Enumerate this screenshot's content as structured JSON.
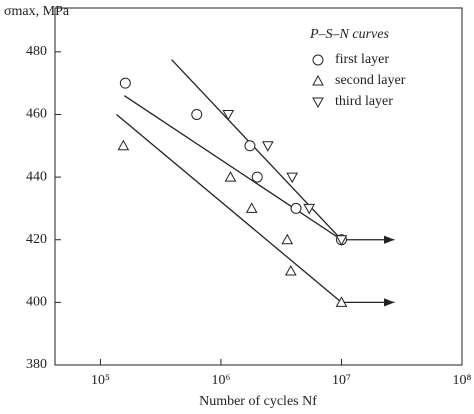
{
  "chart_data": {
    "type": "scatter",
    "y_label": "σmax, MPa",
    "x_label": "Number of cycles Nf",
    "legend_title": "P–S–N curves",
    "log_x": true,
    "xlim": [
      42000,
      100000000
    ],
    "ylim": [
      380,
      494
    ],
    "xticks": [
      {
        "value": 100000,
        "label": "10⁵"
      },
      {
        "value": 1000000,
        "label": "10⁶"
      },
      {
        "value": 10000000,
        "label": "10⁷"
      },
      {
        "value": 100000000,
        "label": "10⁸"
      }
    ],
    "yticks": [
      380,
      400,
      420,
      440,
      460,
      480
    ],
    "series": [
      {
        "name": "first layer",
        "marker": "circle",
        "color": "#222",
        "x": [
          161000,
          630000,
          1740000,
          2000000,
          4200000,
          10000000
        ],
        "values": [
          470,
          460,
          450,
          440,
          430,
          420
        ]
      },
      {
        "name": "second layer",
        "marker": "triangle-up",
        "color": "#222",
        "x": [
          155000,
          1200000,
          1800000,
          3550000,
          3800000,
          10000000
        ],
        "values": [
          450,
          440,
          430,
          420,
          410,
          400
        ]
      },
      {
        "name": "third layer",
        "marker": "triangle-down",
        "color": "#222",
        "x": [
          1150000,
          2450000,
          3900000,
          5400000,
          10000000
        ],
        "values": [
          460,
          450,
          440,
          430,
          420
        ]
      }
    ],
    "fit_lines": [
      {
        "x": [
          158000,
          10000000
        ],
        "y": [
          466,
          420
        ]
      },
      {
        "x": [
          136000,
          10000000
        ],
        "y": [
          460,
          400
        ]
      },
      {
        "x": [
          390000,
          10000000
        ],
        "y": [
          477.5,
          420
        ]
      }
    ],
    "arrows": [
      {
        "x": [
          10000000,
          27500000
        ],
        "y": [
          420,
          420
        ]
      },
      {
        "x": [
          10000000,
          27500000
        ],
        "y": [
          400,
          400
        ]
      }
    ]
  }
}
